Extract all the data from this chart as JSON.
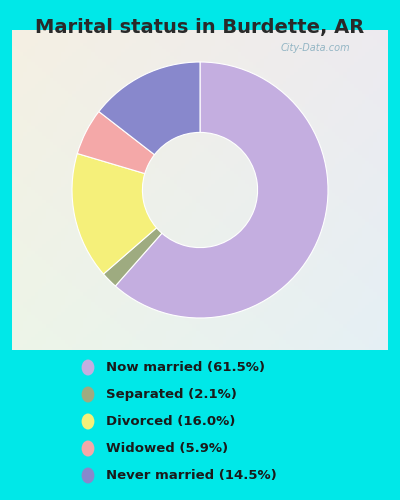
{
  "title": "Marital status in Burdette, AR",
  "categories": [
    "Now married",
    "Separated",
    "Divorced",
    "Widowed",
    "Never married"
  ],
  "values": [
    61.5,
    2.1,
    16.0,
    5.9,
    14.5
  ],
  "colors": [
    "#c4aee0",
    "#9eab80",
    "#f5f07a",
    "#f4a8a8",
    "#8888cc"
  ],
  "legend_labels": [
    "Now married (61.5%)",
    "Separated (2.1%)",
    "Divorced (16.0%)",
    "Widowed (5.9%)",
    "Never married (14.5%)"
  ],
  "background_outer": "#00e8e8",
  "background_chart_tl": "#e8f5e2",
  "background_chart_br": "#d8eef5",
  "title_fontsize": 14,
  "watermark": "City-Data.com",
  "fig_width": 4.0,
  "fig_height": 5.0,
  "donut_width": 0.55
}
